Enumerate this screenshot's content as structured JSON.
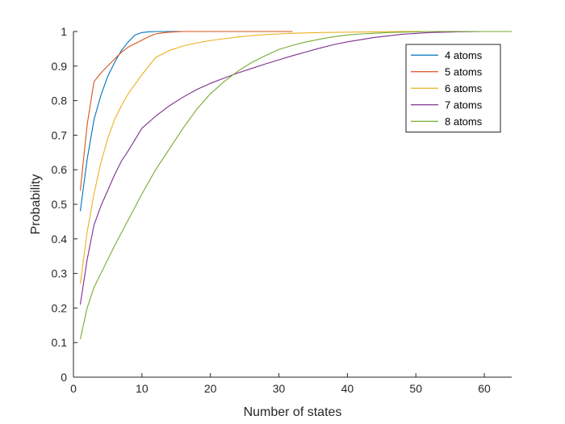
{
  "chart_data": {
    "type": "line",
    "title": "",
    "xlabel": "Number of states",
    "ylabel": "Probability",
    "xlim": [
      0,
      64
    ],
    "ylim": [
      0,
      1
    ],
    "xticks": [
      0,
      10,
      20,
      30,
      40,
      50,
      60
    ],
    "yticks": [
      0,
      0.1,
      0.2,
      0.3,
      0.4,
      0.5,
      0.6,
      0.7,
      0.8,
      0.9,
      1
    ],
    "grid": false,
    "legend": "top-right",
    "series": [
      {
        "name": "4 atoms",
        "color": "#0072BD",
        "x": [
          1,
          2,
          3,
          4,
          5,
          6,
          7,
          8,
          9,
          10,
          11,
          12,
          13,
          14,
          15,
          16
        ],
        "y": [
          0.48,
          0.63,
          0.745,
          0.815,
          0.87,
          0.91,
          0.945,
          0.97,
          0.99,
          0.997,
          0.999,
          1,
          1,
          1,
          1,
          1
        ]
      },
      {
        "name": "5 atoms",
        "color": "#D95319",
        "x": [
          1,
          2,
          3,
          4,
          5,
          6,
          7,
          8,
          9,
          10,
          11,
          12,
          13,
          14,
          15,
          16,
          18,
          20,
          24,
          28,
          32
        ],
        "y": [
          0.54,
          0.73,
          0.855,
          0.88,
          0.9,
          0.92,
          0.94,
          0.955,
          0.965,
          0.975,
          0.985,
          0.993,
          0.996,
          0.998,
          0.999,
          1,
          1,
          1,
          1,
          1,
          1
        ]
      },
      {
        "name": "6 atoms",
        "color": "#EDB120",
        "x": [
          1,
          2,
          3,
          4,
          5,
          6,
          7,
          8,
          10,
          12,
          14,
          16,
          18,
          20,
          22,
          24,
          26,
          28,
          30,
          32,
          36,
          40,
          44,
          48,
          52,
          56,
          60,
          64
        ],
        "y": [
          0.27,
          0.42,
          0.53,
          0.62,
          0.69,
          0.745,
          0.785,
          0.82,
          0.875,
          0.925,
          0.945,
          0.958,
          0.967,
          0.974,
          0.979,
          0.984,
          0.988,
          0.991,
          0.993,
          0.995,
          0.997,
          0.998,
          0.999,
          1,
          1,
          1,
          1,
          1
        ]
      },
      {
        "name": "7 atoms",
        "color": "#7E2F8E",
        "x": [
          1,
          2,
          3,
          4,
          5,
          6,
          7,
          8,
          10,
          12,
          14,
          16,
          18,
          20,
          22,
          24,
          26,
          28,
          30,
          32,
          34,
          36,
          38,
          40,
          44,
          48,
          52,
          56,
          60,
          64
        ],
        "y": [
          0.21,
          0.34,
          0.44,
          0.495,
          0.54,
          0.585,
          0.625,
          0.655,
          0.72,
          0.755,
          0.785,
          0.81,
          0.832,
          0.85,
          0.865,
          0.88,
          0.893,
          0.906,
          0.918,
          0.93,
          0.941,
          0.952,
          0.962,
          0.97,
          0.983,
          0.992,
          0.997,
          0.999,
          1,
          1
        ]
      },
      {
        "name": "8 atoms",
        "color": "#77AC30",
        "x": [
          1,
          2,
          3,
          4,
          6,
          8,
          10,
          12,
          14,
          16,
          18,
          20,
          22,
          24,
          26,
          28,
          30,
          32,
          34,
          36,
          38,
          40,
          42,
          44,
          46,
          48,
          50,
          52,
          54,
          56,
          60,
          64
        ],
        "y": [
          0.11,
          0.2,
          0.26,
          0.3,
          0.38,
          0.455,
          0.53,
          0.6,
          0.66,
          0.72,
          0.775,
          0.82,
          0.855,
          0.885,
          0.91,
          0.93,
          0.948,
          0.96,
          0.97,
          0.978,
          0.985,
          0.99,
          0.993,
          0.995,
          0.997,
          0.998,
          0.999,
          1,
          1,
          1,
          1,
          1
        ]
      }
    ]
  }
}
